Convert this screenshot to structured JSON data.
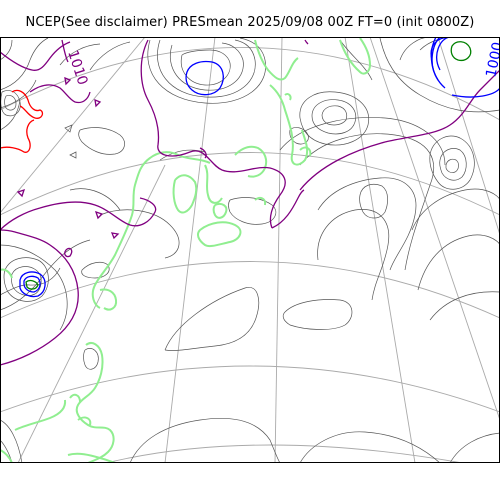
{
  "map": {
    "title": "NCEP(See disclaimer) PRESmean 2025/09/08 00Z FT=0 (init 0800Z)",
    "contour_labels": [
      "1010",
      "1000"
    ],
    "colors": {
      "background": "#ffffff",
      "frame": "#000000",
      "graticule": "#aaaaaa",
      "coastline": "#90ee90",
      "isobar_minor": "#555555",
      "isobar_purple": "#800080",
      "isobar_blue": "#0000ff",
      "isobar_red": "#ff0000",
      "isobar_green": "#008000"
    }
  }
}
